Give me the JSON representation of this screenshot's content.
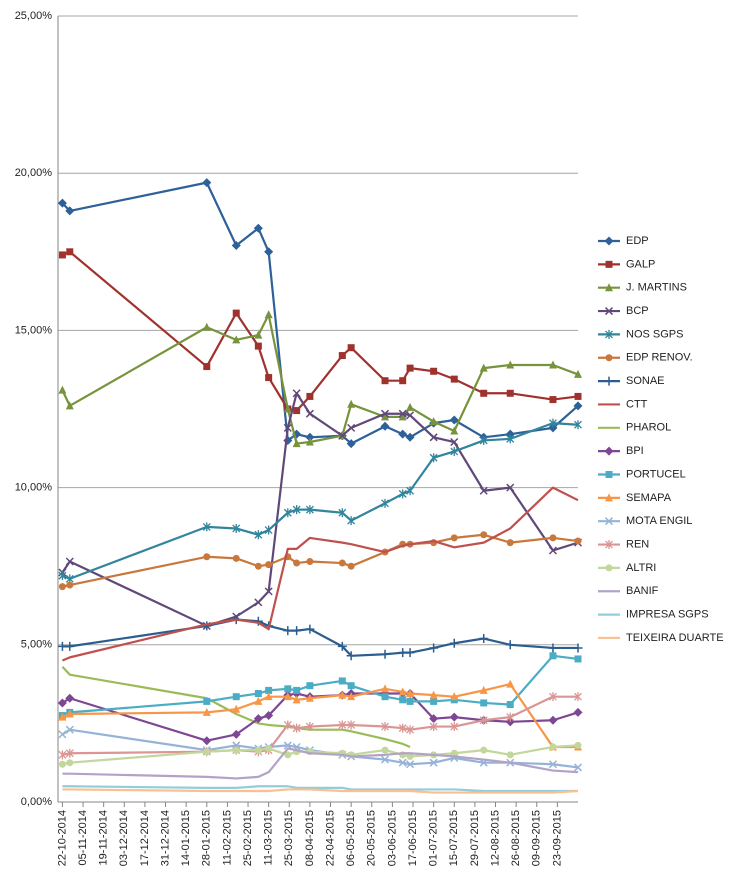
{
  "chart_data": {
    "type": "line",
    "x": [
      "22-10-2014",
      "27-10-2014",
      "28-01-2015",
      "17-02-2015",
      "04-03-2015",
      "11-03-2015",
      "24-03-2015",
      "30-03-2015",
      "08-04-2015",
      "30-04-2015",
      "06-05-2015",
      "29-05-2015",
      "10-06-2015",
      "15-06-2015",
      "01-07-2015",
      "15-07-2015",
      "04-08-2015",
      "22-08-2015",
      "20-09-2015",
      "07-10-2015"
    ],
    "xlim": [
      "19-10-2014",
      "07-10-2015"
    ],
    "xticks": [
      "22-10-2014",
      "05-11-2014",
      "19-11-2014",
      "03-12-2014",
      "17-12-2014",
      "31-12-2014",
      "14-01-2015",
      "28-01-2015",
      "11-02-2015",
      "25-02-2015",
      "11-03-2015",
      "25-03-2015",
      "08-04-2015",
      "22-04-2015",
      "06-05-2015",
      "20-05-2015",
      "03-06-2015",
      "17-06-2015",
      "01-07-2015",
      "15-07-2015",
      "29-07-2015",
      "12-08-2015",
      "26-08-2015",
      "09-09-2015",
      "23-09-2015"
    ],
    "ylim": [
      0,
      25
    ],
    "yticks": [
      {
        "value": 0,
        "label": "0,00%"
      },
      {
        "value": 5,
        "label": "5,00%"
      },
      {
        "value": 10,
        "label": "10,00%"
      },
      {
        "value": 15,
        "label": "15,00%"
      },
      {
        "value": 20,
        "label": "20,00%"
      },
      {
        "value": 25,
        "label": "25,00%"
      }
    ],
    "grid": true,
    "legend": "right",
    "series": [
      {
        "name": "EDP",
        "color": "#2e6099",
        "marker": "diamond",
        "values": [
          19.05,
          18.8,
          19.7,
          17.7,
          18.25,
          17.5,
          11.5,
          11.7,
          11.6,
          11.65,
          11.4,
          11.95,
          11.7,
          11.6,
          12.05,
          12.15,
          11.6,
          11.7,
          11.9,
          12.6
        ]
      },
      {
        "name": "GALP",
        "color": "#a0322d",
        "marker": "square",
        "values": [
          17.4,
          17.5,
          13.85,
          15.55,
          14.5,
          13.5,
          12.5,
          12.45,
          12.9,
          14.2,
          14.45,
          13.4,
          13.4,
          13.8,
          13.7,
          13.45,
          13.0,
          13.0,
          12.8,
          12.9
        ]
      },
      {
        "name": "J. MARTINS",
        "color": "#77933c",
        "marker": "triangle",
        "values": [
          13.1,
          12.6,
          15.1,
          14.7,
          14.85,
          15.5,
          12.5,
          11.4,
          11.45,
          11.65,
          12.65,
          12.25,
          12.25,
          12.55,
          12.1,
          11.8,
          13.8,
          13.9,
          13.9,
          13.6
        ]
      },
      {
        "name": "BCP",
        "color": "#60497a",
        "marker": "x",
        "values": [
          7.3,
          7.65,
          5.6,
          5.9,
          6.35,
          6.7,
          11.9,
          13.0,
          12.35,
          11.65,
          11.9,
          12.35,
          12.35,
          12.3,
          11.6,
          11.45,
          9.9,
          10.0,
          8.0,
          8.25
        ]
      },
      {
        "name": "NOS SGPS",
        "color": "#31859c",
        "marker": "star",
        "values": [
          7.2,
          7.1,
          8.75,
          8.7,
          8.5,
          8.65,
          9.2,
          9.3,
          9.3,
          9.2,
          8.95,
          9.5,
          9.8,
          9.9,
          10.95,
          11.15,
          11.5,
          11.55,
          12.05,
          12.0
        ]
      },
      {
        "name": "EDP RENOV.",
        "color": "#c8783c",
        "marker": "circle",
        "values": [
          6.85,
          6.9,
          7.8,
          7.75,
          7.5,
          7.55,
          7.8,
          7.6,
          7.65,
          7.6,
          7.5,
          7.95,
          8.2,
          8.2,
          8.25,
          8.4,
          8.5,
          8.25,
          8.4,
          8.3
        ]
      },
      {
        "name": "SONAE",
        "color": "#2c5d8f",
        "marker": "plus",
        "values": [
          4.95,
          4.95,
          5.6,
          5.8,
          5.75,
          5.6,
          5.45,
          5.45,
          5.5,
          4.95,
          4.65,
          4.7,
          4.75,
          4.75,
          4.9,
          5.05,
          5.2,
          5.0,
          4.9,
          4.9
        ]
      },
      {
        "name": "CTT",
        "color": "#c0504d",
        "values": [
          4.5,
          4.6,
          5.65,
          5.8,
          5.7,
          5.5,
          8.05,
          8.05,
          8.4,
          8.25,
          8.2,
          7.95,
          8.15,
          8.2,
          8.3,
          8.1,
          8.25,
          8.7,
          10.0,
          9.6
        ]
      },
      {
        "name": "PHAROL",
        "color": "#9bbb59",
        "values": [
          4.3,
          4.05,
          3.3,
          2.8,
          2.5,
          2.45,
          2.4,
          2.35,
          2.3,
          2.3,
          2.25,
          2.0,
          1.85,
          1.75,
          null,
          null,
          null,
          null,
          null,
          null
        ]
      },
      {
        "name": "BPI",
        "color": "#7e4794",
        "marker": "diamond",
        "values": [
          3.15,
          3.3,
          1.95,
          2.15,
          2.65,
          2.75,
          3.4,
          3.45,
          3.35,
          3.4,
          3.45,
          3.45,
          3.45,
          3.45,
          2.65,
          2.7,
          2.6,
          2.55,
          2.6,
          2.85
        ]
      },
      {
        "name": "PORTUCEL",
        "color": "#4bacc6",
        "marker": "square",
        "values": [
          2.75,
          2.85,
          3.2,
          3.35,
          3.45,
          3.55,
          3.6,
          3.55,
          3.7,
          3.85,
          3.7,
          3.35,
          3.25,
          3.2,
          3.2,
          3.25,
          3.15,
          3.1,
          4.65,
          4.55
        ]
      },
      {
        "name": "SEMAPA",
        "color": "#f79646",
        "marker": "triangle",
        "values": [
          2.7,
          2.8,
          2.85,
          2.95,
          3.2,
          3.35,
          3.35,
          3.25,
          3.3,
          3.4,
          3.35,
          3.6,
          3.5,
          3.45,
          3.4,
          3.35,
          3.55,
          3.75,
          1.75,
          1.75
        ]
      },
      {
        "name": "MOTA ENGIL",
        "color": "#95b3d7",
        "marker": "x",
        "values": [
          2.15,
          2.3,
          1.65,
          1.8,
          1.7,
          1.75,
          1.8,
          1.75,
          1.65,
          1.5,
          1.45,
          1.35,
          1.25,
          1.2,
          1.25,
          1.4,
          1.25,
          1.25,
          1.2,
          1.1
        ]
      },
      {
        "name": "REN",
        "color": "#d99694",
        "marker": "star",
        "values": [
          1.5,
          1.55,
          1.6,
          1.65,
          1.6,
          1.65,
          2.45,
          2.35,
          2.4,
          2.45,
          2.45,
          2.4,
          2.35,
          2.3,
          2.4,
          2.4,
          2.6,
          2.7,
          3.35,
          3.35
        ]
      },
      {
        "name": "ALTRI",
        "color": "#c3d69b",
        "marker": "circle",
        "values": [
          1.2,
          1.25,
          1.6,
          1.65,
          1.65,
          1.7,
          1.5,
          1.6,
          1.6,
          1.55,
          1.5,
          1.65,
          1.5,
          1.45,
          1.5,
          1.55,
          1.65,
          1.5,
          1.75,
          1.8
        ]
      },
      {
        "name": "BANIF",
        "color": "#b3a2c7",
        "values": [
          0.9,
          0.9,
          0.8,
          0.75,
          0.8,
          0.95,
          1.7,
          1.65,
          1.55,
          1.5,
          1.45,
          1.5,
          1.55,
          1.55,
          1.5,
          1.45,
          1.35,
          1.25,
          1.0,
          0.95
        ]
      },
      {
        "name": "IMPRESA SGPS",
        "color": "#93cddd",
        "values": [
          0.5,
          0.5,
          0.45,
          0.45,
          0.5,
          0.5,
          0.5,
          0.45,
          0.45,
          0.45,
          0.4,
          0.4,
          0.4,
          0.4,
          0.4,
          0.4,
          0.35,
          0.35,
          0.35,
          0.35
        ]
      },
      {
        "name": "TEIXEIRA DUARTE",
        "color": "#fac090",
        "values": [
          0.4,
          0.4,
          0.35,
          0.35,
          0.35,
          0.35,
          0.4,
          0.4,
          0.4,
          0.35,
          0.35,
          0.35,
          0.35,
          0.35,
          0.3,
          0.3,
          0.3,
          0.3,
          0.3,
          0.35
        ]
      }
    ]
  }
}
